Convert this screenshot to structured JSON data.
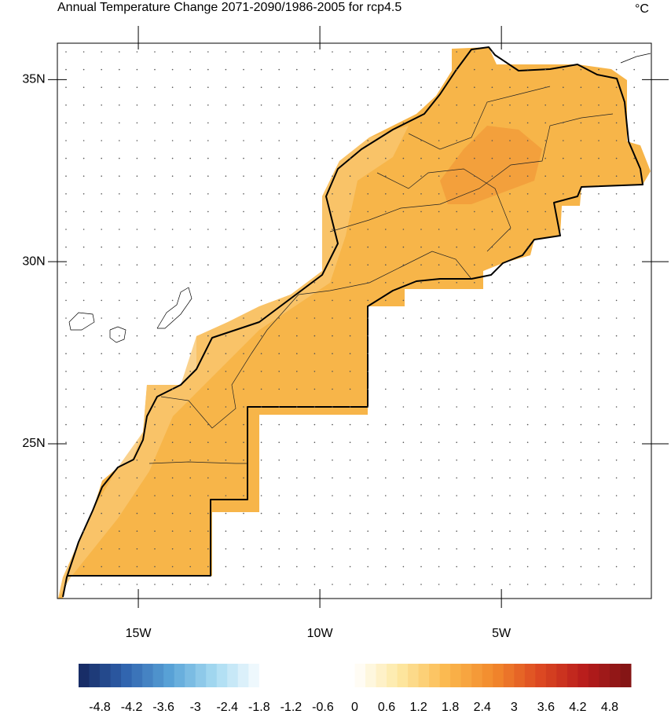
{
  "chart_data": {
    "type": "map",
    "title": "Annual Temperature Change 2071-2090/1986-2005 for rcp4.5",
    "unit": "°C",
    "xlim": [
      -17.23,
      -0.87
    ],
    "ylim": [
      20.75,
      36.0
    ],
    "xticks": [
      {
        "value": -15,
        "label": "15W"
      },
      {
        "value": -10,
        "label": "10W"
      },
      {
        "value": -5,
        "label": "5W"
      }
    ],
    "yticks": [
      {
        "value": 25,
        "label": "25N"
      },
      {
        "value": 30,
        "label": "30N"
      },
      {
        "value": 35,
        "label": "35N"
      }
    ],
    "colorbar": {
      "lim": [
        -5.2,
        5.2
      ],
      "ticks": [
        -4.8,
        -4.2,
        -3.6,
        -3,
        -2.4,
        -1.8,
        -1.2,
        -0.6,
        0,
        0.6,
        1.2,
        1.8,
        2.4,
        3,
        3.6,
        4.2,
        4.8
      ],
      "colors": [
        "#15265e",
        "#2f62ad",
        "#5aa4d8",
        "#a9dcf2",
        "#ffffff",
        "#ffffff",
        "#ffffff",
        "#fde7a0",
        "#fbb84e",
        "#f28a2c",
        "#dd4a22",
        "#b81c1c",
        "#7e1414"
      ]
    }
  }
}
